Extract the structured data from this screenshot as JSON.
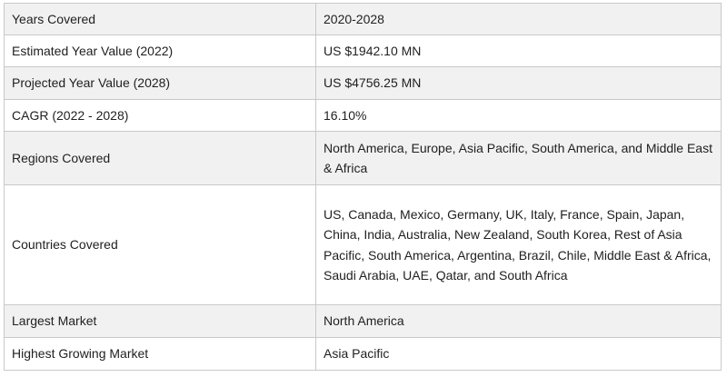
{
  "table": {
    "rows": [
      {
        "label": "Years Covered",
        "value": "2020-2028"
      },
      {
        "label": "Estimated Year Value (2022)",
        "value": "US $1942.10 MN"
      },
      {
        "label": "Projected Year Value (2028)",
        "value": "US $4756.25 MN"
      },
      {
        "label": "CAGR (2022 - 2028)",
        "value": "16.10%"
      },
      {
        "label": "Regions Covered",
        "value": "North America, Europe, Asia Pacific, South America, and Middle East & Africa"
      },
      {
        "label": "Countries Covered",
        "value": "US, Canada, Mexico, Germany, UK, Italy, France, Spain, Japan, China, India, Australia, New Zealand, South Korea, Rest of Asia Pacific, South America, Argentina, Brazil, Chile, Middle East & Africa, Saudi Arabia, UAE, Qatar, and South Africa"
      },
      {
        "label": "Largest Market",
        "value": "North America"
      },
      {
        "label": "Highest Growing Market",
        "value": "Asia Pacific"
      }
    ]
  },
  "colors": {
    "row_alt_background": "#f1f1f1",
    "row_plain_background": "#ffffff",
    "border": "#c9c9c9",
    "text": "#1f1f1f"
  }
}
